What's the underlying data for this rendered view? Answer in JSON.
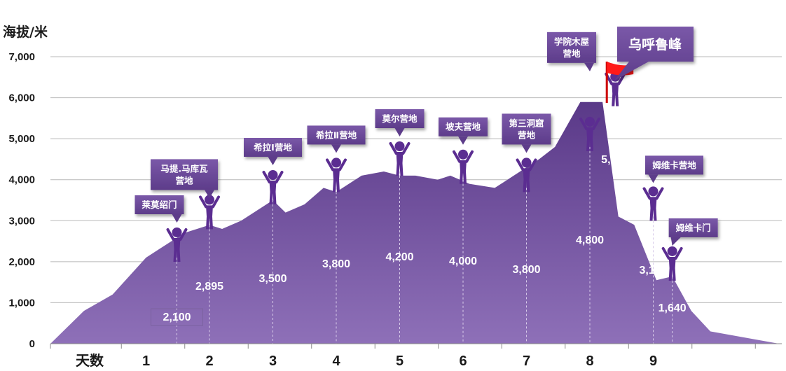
{
  "chart_data": {
    "type": "area",
    "ylabel": "海拔/米",
    "ylim": [
      0,
      7000
    ],
    "yticks": [
      "0",
      "1,000",
      "2,000",
      "3,000",
      "4,000",
      "5,000",
      "6,000",
      "7,000"
    ],
    "xlabel": "天数",
    "days": [
      "1",
      "2",
      "3",
      "4",
      "5",
      "6",
      "7",
      "8",
      "9"
    ],
    "grid": true,
    "profile": [
      [
        0.0,
        0
      ],
      [
        0.35,
        800
      ],
      [
        0.65,
        1200
      ],
      [
        1.0,
        2100
      ],
      [
        1.2,
        2300
      ],
      [
        1.6,
        2700
      ],
      [
        2.0,
        2895
      ],
      [
        2.2,
        2800
      ],
      [
        2.5,
        3000
      ],
      [
        3.0,
        3500
      ],
      [
        3.2,
        3200
      ],
      [
        3.5,
        3400
      ],
      [
        3.8,
        3800
      ],
      [
        4.0,
        3700
      ],
      [
        4.4,
        4100
      ],
      [
        4.75,
        4200
      ],
      [
        5.0,
        4100
      ],
      [
        5.25,
        4100
      ],
      [
        5.6,
        4000
      ],
      [
        5.8,
        4100
      ],
      [
        6.1,
        3900
      ],
      [
        6.5,
        3800
      ],
      [
        6.7,
        4000
      ],
      [
        7.2,
        4500
      ],
      [
        7.45,
        4800
      ],
      [
        7.85,
        5895
      ],
      [
        8.2,
        5895
      ],
      [
        8.45,
        3100
      ],
      [
        8.7,
        2900
      ],
      [
        9.05,
        1550
      ],
      [
        9.3,
        1640
      ],
      [
        9.6,
        800
      ],
      [
        9.9,
        300
      ],
      [
        11.6,
        0
      ]
    ],
    "points": [
      {
        "day": 1.0,
        "value": 2100,
        "label": "2,100",
        "camp": [
          "莱莫绍门"
        ]
      },
      {
        "day": 2.0,
        "value": 2895,
        "label": "2,895",
        "camp": [
          "马提.马库瓦",
          "营地"
        ]
      },
      {
        "day": 3.0,
        "value": 3500,
        "label": "3,500",
        "camp": [
          "希拉Ⅰ营地"
        ]
      },
      {
        "day": 4.0,
        "value": 3800,
        "label": "3,800",
        "camp": [
          "希拉Ⅱ营地"
        ]
      },
      {
        "day": 5.0,
        "value": 4200,
        "label": "4,200",
        "camp": [
          "莫尔营地"
        ]
      },
      {
        "day": 6.0,
        "value": 4000,
        "label": "4,000",
        "camp": [
          "坡夫营地"
        ]
      },
      {
        "day": 7.0,
        "value": 3800,
        "label": "3,800",
        "camp": [
          "第三洞窟",
          "营地"
        ]
      },
      {
        "day": 8.0,
        "value": 4800,
        "label": "4,800",
        "camp": [
          "学院木屋",
          "营地"
        ]
      },
      {
        "day": 8.4,
        "value": 5895,
        "label": "5,895",
        "camp": [
          "乌呼鲁峰"
        ]
      },
      {
        "day": 9.0,
        "value": 3100,
        "label": "3,100",
        "camp": [
          "姆维卡营地"
        ]
      },
      {
        "day": 9.3,
        "value": 1640,
        "label": "1,640",
        "camp": [
          "姆维卡门"
        ]
      }
    ],
    "colors": {
      "fill_top": "#5d3b8c",
      "fill_bottom": "#8a6ab4",
      "callout": "#6a4a96",
      "flag": "#ff1a1a",
      "figure": "#5b2d91"
    }
  }
}
